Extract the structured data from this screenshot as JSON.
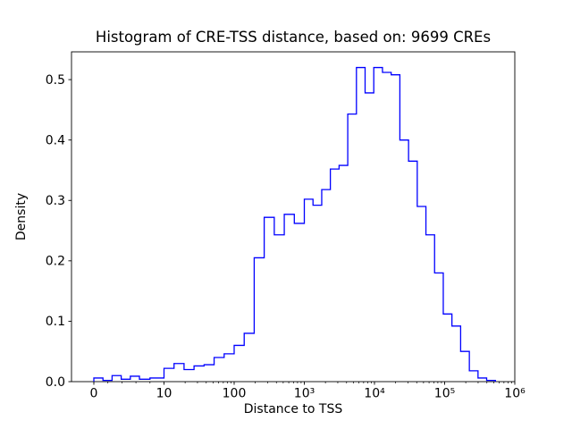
{
  "figure": {
    "background": "#ffffff"
  },
  "chart_data": {
    "type": "histogram",
    "histtype": "step",
    "title": "Histogram of CRE-TSS distance, based on: 9699 CREs",
    "xlabel": "Distance to TSS",
    "ylabel": "Density",
    "sample_count": 9699,
    "color": "#0000ff",
    "xscale": "symlog",
    "ylim": [
      0,
      0.546
    ],
    "bin_edges": [
      0,
      1.3,
      2.6,
      3.9,
      5.2,
      6.5,
      8,
      10,
      13.9,
      19.3,
      26.8,
      37.3,
      51.8,
      72,
      100,
      139,
      193,
      268,
      373,
      518,
      720,
      1000,
      1330,
      1770,
      2350,
      3130,
      4160,
      5530,
      7350,
      9770,
      13000,
      17300,
      23000,
      30600,
      40700,
      54100,
      71900,
      95600,
      127000,
      169000,
      225000,
      299000,
      397000,
      530000
    ],
    "densities": [
      0.006,
      0.002,
      0.01,
      0.004,
      0.009,
      0.004,
      0.006,
      0.022,
      0.03,
      0.02,
      0.026,
      0.028,
      0.04,
      0.046,
      0.06,
      0.08,
      0.205,
      0.272,
      0.243,
      0.277,
      0.262,
      0.302,
      0.292,
      0.318,
      0.352,
      0.358,
      0.443,
      0.52,
      0.478,
      0.52,
      0.512,
      0.508,
      0.4,
      0.365,
      0.29,
      0.243,
      0.18,
      0.112,
      0.092,
      0.05,
      0.018,
      0.006,
      0.002
    ]
  },
  "x_axis": {
    "label": "Distance to TSS",
    "tick_values": [
      0,
      10,
      100,
      1000,
      10000,
      100000,
      1000000
    ],
    "tick_labels": [
      "0",
      "10",
      "100",
      "10³",
      "10⁴",
      "10⁵",
      "10⁶"
    ],
    "minor_tick_values_linear": [
      2,
      4,
      6,
      8
    ]
  },
  "y_axis": {
    "label": "Density",
    "tick_values": [
      0.0,
      0.1,
      0.2,
      0.3,
      0.4,
      0.5
    ],
    "tick_labels": [
      "0.0",
      "0.1",
      "0.2",
      "0.3",
      "0.4",
      "0.5"
    ],
    "range": [
      0,
      0.546
    ]
  }
}
